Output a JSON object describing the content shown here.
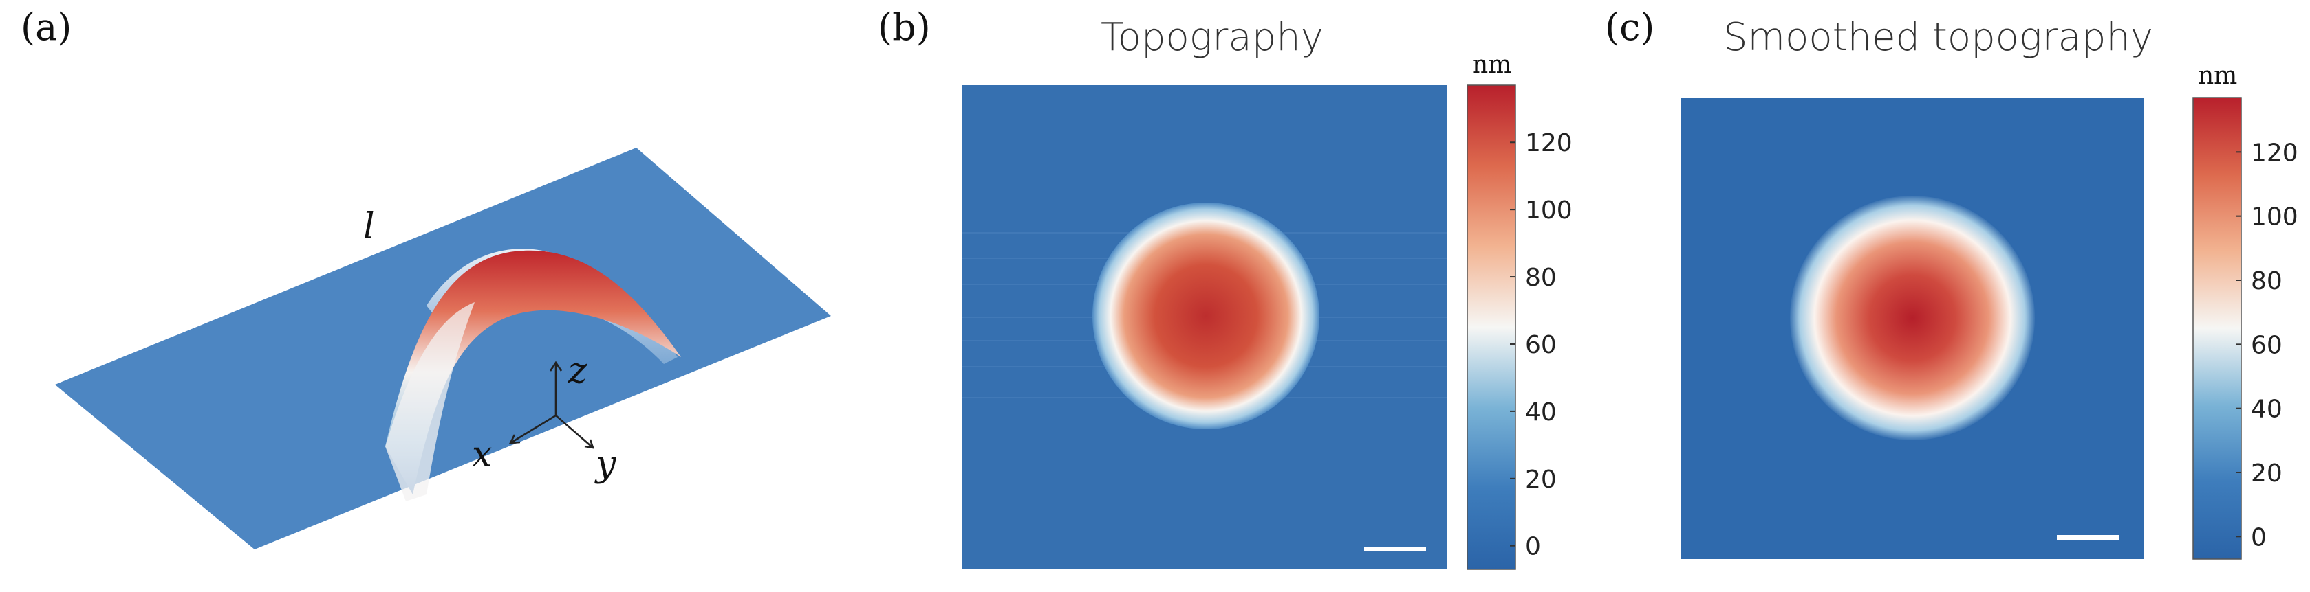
{
  "panels": {
    "a": {
      "letter": "(a)",
      "label_l": "l",
      "axes": {
        "x": "x",
        "y": "y",
        "z": "z"
      }
    },
    "b": {
      "letter": "(b)",
      "title": "Topography"
    },
    "c": {
      "letter": "(c)",
      "title": "Smoothed topography"
    }
  },
  "colorbar": {
    "unit": "nm",
    "ticks": [
      "0",
      "20",
      "40",
      "60",
      "80",
      "100",
      "120"
    ],
    "range": [
      -7,
      137
    ],
    "colors": [
      "#2b64a8",
      "#3e7dbc",
      "#7ab3d6",
      "#f6f6f4",
      "#f2b391",
      "#dd6a4e",
      "#b8202c"
    ]
  },
  "substrate_color": "#3670b0",
  "scale_bar_color": "#ffffff"
}
